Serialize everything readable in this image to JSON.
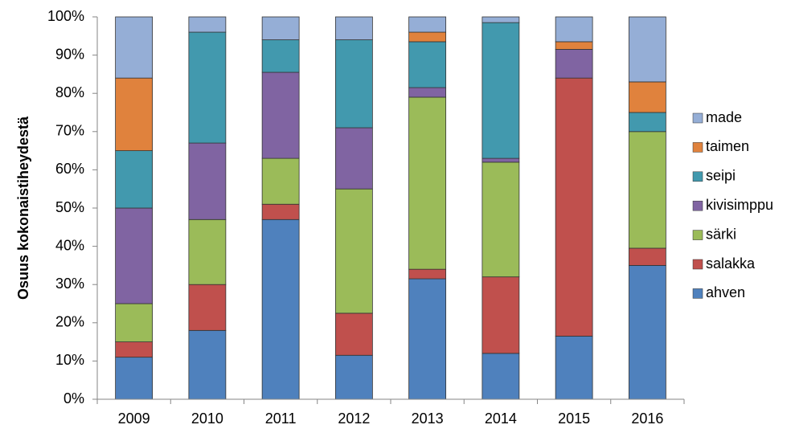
{
  "chart_data": {
    "type": "stacked_bar",
    "y_label": "Osuus kokonaistiheydestä",
    "categories": [
      "2009",
      "2010",
      "2011",
      "2012",
      "2013",
      "2014",
      "2015",
      "2016"
    ],
    "series": [
      {
        "name": "ahven",
        "color": "#4f81bd",
        "values": [
          11,
          18,
          47,
          11.5,
          31.5,
          12,
          16.5,
          35
        ]
      },
      {
        "name": "salakka",
        "color": "#c0504d",
        "values": [
          4,
          12,
          4,
          11,
          2.5,
          20,
          67.5,
          4.5
        ]
      },
      {
        "name": "särki",
        "color": "#9bbb59",
        "values": [
          10,
          17,
          12,
          32.5,
          45,
          30,
          0,
          30.5
        ]
      },
      {
        "name": "kivisimppu",
        "color": "#8064a2",
        "values": [
          25,
          20,
          22.5,
          16,
          2.5,
          1,
          7.5,
          0
        ]
      },
      {
        "name": "seipi",
        "color": "#4299ae",
        "values": [
          15,
          29,
          8.5,
          23,
          12,
          35.5,
          0,
          5
        ]
      },
      {
        "name": "taimen",
        "color": "#e0823d",
        "values": [
          19,
          0,
          0,
          0,
          2.5,
          0,
          2,
          8
        ]
      },
      {
        "name": "made",
        "color": "#95aed6",
        "values": [
          16,
          4,
          6,
          6,
          4,
          1.5,
          6.5,
          17
        ]
      }
    ],
    "ylim": [
      0,
      100
    ],
    "yticks": [
      {
        "value": 0,
        "label": "0%"
      },
      {
        "value": 10,
        "label": "10%"
      },
      {
        "value": 20,
        "label": "20%"
      },
      {
        "value": 30,
        "label": "30%"
      },
      {
        "value": 40,
        "label": "40%"
      },
      {
        "value": 50,
        "label": "50%"
      },
      {
        "value": 60,
        "label": "60%"
      },
      {
        "value": 70,
        "label": "70%"
      },
      {
        "value": 80,
        "label": "80%"
      },
      {
        "value": 90,
        "label": "90%"
      },
      {
        "value": 100,
        "label": "100%"
      }
    ],
    "grid": false,
    "legend": "right"
  }
}
